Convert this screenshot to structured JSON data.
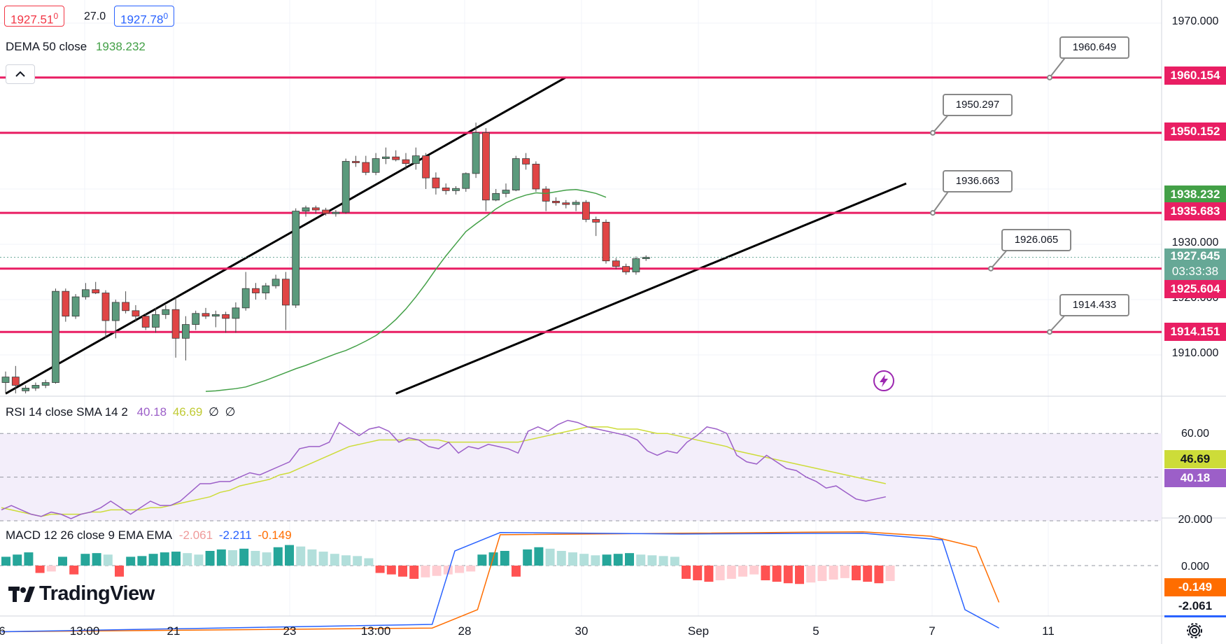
{
  "toolbar": {
    "bid": "1927.51",
    "bid_sup": "0",
    "spread": "27.0",
    "ask": "1927.78",
    "ask_sup": "0",
    "collapse_icon": "chevron-up-icon"
  },
  "legends": {
    "dema": {
      "name": "DEMA 50 close",
      "value": "1938.232"
    },
    "rsi": {
      "name": "RSI 14 close SMA 14 2",
      "value1": "40.18",
      "value2": "46.69",
      "extra1": "∅",
      "extra2": "∅"
    },
    "macd": {
      "name": "MACD 12 26 close 9 EMA EMA",
      "value1": "-2.061",
      "value2": "-2.211",
      "value3": "-0.149"
    }
  },
  "logo": {
    "text": "TradingView",
    "icon": "tradingview-logo-icon"
  },
  "flash_icon": "lightning-icon",
  "settings_icon": "gear-icon",
  "colors": {
    "up": "#26a69a",
    "down": "#ef5350",
    "level_line": "#e91e63",
    "dema": "#43a047",
    "rsi": "#9c5fc8",
    "rsi_sma": "#cddc39",
    "macd": "#2962ff",
    "signal": "#ff6d00"
  },
  "price_axis": {
    "ticks": [
      "1970.000",
      "1930.000",
      "1920.000",
      "1910.000"
    ],
    "labels": [
      {
        "value": "1960.154",
        "color": "#e91e63"
      },
      {
        "value": "1950.152",
        "color": "#e91e63"
      },
      {
        "value": "1938.232",
        "color": "#43a047"
      },
      {
        "value": "1935.683",
        "color": "#e91e63"
      },
      {
        "value": "1927.645",
        "sub": "03:33:38",
        "color": "#66a896"
      },
      {
        "value": "1925.604",
        "color": "#e91e63"
      },
      {
        "value": "1914.151",
        "color": "#e91e63"
      }
    ]
  },
  "rsi_axis": {
    "ticks": [
      "60.00"
    ],
    "labels": [
      {
        "value": "46.69",
        "color": "#cddc39"
      },
      {
        "value": "40.18",
        "color": "#9c5fc8"
      }
    ]
  },
  "macd_axis": {
    "ticks": [
      "20.000",
      "0.000"
    ],
    "labels": [
      {
        "value": "-0.149",
        "color": "#ff6d00"
      },
      {
        "value": "-2.061",
        "color": "#ffffff"
      }
    ]
  },
  "time_axis": [
    "6",
    "13:00",
    "21",
    "23",
    "13:00",
    "28",
    "30",
    "Sep",
    "5",
    "7",
    "11"
  ],
  "callouts": [
    "1960.649",
    "1950.297",
    "1936.663",
    "1926.065",
    "1914.433"
  ],
  "chart_data": {
    "type": "candlestick",
    "symbol_levels": [
      1960.154,
      1950.152,
      1935.683,
      1925.604,
      1914.151
    ],
    "last_price": 1927.645,
    "countdown": "03:33:38",
    "dema_last": 1938.232,
    "ylim": [
      1903,
      1972
    ],
    "candles": [
      {
        "o": 1905,
        "h": 1907,
        "l": 1902.5,
        "c": 1906
      },
      {
        "o": 1906,
        "h": 1908,
        "l": 1903,
        "c": 1904.5
      },
      {
        "o": 1903.5,
        "h": 1904.5,
        "l": 1903,
        "c": 1904
      },
      {
        "o": 1904,
        "h": 1905,
        "l": 1903.5,
        "c": 1904.5
      },
      {
        "o": 1904.5,
        "h": 1905.5,
        "l": 1904,
        "c": 1905
      },
      {
        "o": 1905,
        "h": 1922,
        "l": 1904.8,
        "c": 1921.5
      },
      {
        "o": 1921.5,
        "h": 1922,
        "l": 1916,
        "c": 1917
      },
      {
        "o": 1917,
        "h": 1921,
        "l": 1916.5,
        "c": 1920.5
      },
      {
        "o": 1920.5,
        "h": 1923,
        "l": 1920,
        "c": 1921.8
      },
      {
        "o": 1921.8,
        "h": 1923.2,
        "l": 1921,
        "c": 1921.2
      },
      {
        "o": 1921.2,
        "h": 1921.7,
        "l": 1913,
        "c": 1916.2
      },
      {
        "o": 1916.2,
        "h": 1920,
        "l": 1913,
        "c": 1919.5
      },
      {
        "o": 1919.5,
        "h": 1921.5,
        "l": 1917.5,
        "c": 1918
      },
      {
        "o": 1918,
        "h": 1919,
        "l": 1916,
        "c": 1917
      },
      {
        "o": 1917,
        "h": 1917.5,
        "l": 1914.5,
        "c": 1915
      },
      {
        "o": 1915,
        "h": 1918.5,
        "l": 1914,
        "c": 1917.3
      },
      {
        "o": 1917.3,
        "h": 1919,
        "l": 1916.5,
        "c": 1918.2
      },
      {
        "o": 1918.2,
        "h": 1920.5,
        "l": 1909.5,
        "c": 1913
      },
      {
        "o": 1913,
        "h": 1917,
        "l": 1909,
        "c": 1915.5
      },
      {
        "o": 1915.5,
        "h": 1918,
        "l": 1914.5,
        "c": 1917.5
      },
      {
        "o": 1917.5,
        "h": 1918.5,
        "l": 1916.5,
        "c": 1917
      },
      {
        "o": 1917,
        "h": 1918,
        "l": 1915,
        "c": 1917.3
      },
      {
        "o": 1917.3,
        "h": 1917.8,
        "l": 1914,
        "c": 1916.6
      },
      {
        "o": 1916.6,
        "h": 1919.5,
        "l": 1914,
        "c": 1918.5
      },
      {
        "o": 1918.5,
        "h": 1925,
        "l": 1918,
        "c": 1922
      },
      {
        "o": 1922,
        "h": 1923,
        "l": 1920,
        "c": 1921.2
      },
      {
        "o": 1921.2,
        "h": 1923,
        "l": 1920,
        "c": 1922.5
      },
      {
        "o": 1922.5,
        "h": 1924.5,
        "l": 1922,
        "c": 1923.7
      },
      {
        "o": 1923.7,
        "h": 1925,
        "l": 1914.5,
        "c": 1919
      },
      {
        "o": 1919,
        "h": 1936.5,
        "l": 1918.5,
        "c": 1936
      },
      {
        "o": 1936,
        "h": 1937,
        "l": 1935,
        "c": 1936.6
      },
      {
        "o": 1936.6,
        "h": 1937,
        "l": 1935.5,
        "c": 1936.2
      },
      {
        "o": 1936.2,
        "h": 1936.6,
        "l": 1935.2,
        "c": 1935.6
      },
      {
        "o": 1935.6,
        "h": 1936.2,
        "l": 1935,
        "c": 1935.8
      },
      {
        "o": 1935.8,
        "h": 1945.5,
        "l": 1935.5,
        "c": 1945
      },
      {
        "o": 1945,
        "h": 1946,
        "l": 1944,
        "c": 1944.8
      },
      {
        "o": 1944.8,
        "h": 1946,
        "l": 1942.5,
        "c": 1943
      },
      {
        "o": 1943,
        "h": 1946.5,
        "l": 1942.5,
        "c": 1945.5
      },
      {
        "o": 1945.5,
        "h": 1947.5,
        "l": 1944.5,
        "c": 1945.8
      },
      {
        "o": 1945.8,
        "h": 1947,
        "l": 1945,
        "c": 1945.3
      },
      {
        "o": 1945.3,
        "h": 1946.5,
        "l": 1943.5,
        "c": 1944.6
      },
      {
        "o": 1944.6,
        "h": 1947.5,
        "l": 1943.5,
        "c": 1946
      },
      {
        "o": 1946,
        "h": 1946.5,
        "l": 1940,
        "c": 1942
      },
      {
        "o": 1942,
        "h": 1943,
        "l": 1939,
        "c": 1940.2
      },
      {
        "o": 1940.2,
        "h": 1941,
        "l": 1939,
        "c": 1939.7
      },
      {
        "o": 1939.7,
        "h": 1940.5,
        "l": 1939,
        "c": 1940.1
      },
      {
        "o": 1940.1,
        "h": 1943,
        "l": 1939.5,
        "c": 1942.8
      },
      {
        "o": 1942.8,
        "h": 1952,
        "l": 1942,
        "c": 1950.2
      },
      {
        "o": 1950.2,
        "h": 1951,
        "l": 1936,
        "c": 1938
      },
      {
        "o": 1938,
        "h": 1940,
        "l": 1937.8,
        "c": 1939.2
      },
      {
        "o": 1939.2,
        "h": 1941,
        "l": 1938.5,
        "c": 1939.8
      },
      {
        "o": 1939.8,
        "h": 1946,
        "l": 1939.6,
        "c": 1945.5
      },
      {
        "o": 1945.5,
        "h": 1946.5,
        "l": 1943.5,
        "c": 1944.5
      },
      {
        "o": 1944.5,
        "h": 1945,
        "l": 1939.5,
        "c": 1940
      },
      {
        "o": 1940,
        "h": 1940.5,
        "l": 1936,
        "c": 1937.8
      },
      {
        "o": 1937.8,
        "h": 1938.5,
        "l": 1937,
        "c": 1937.5
      },
      {
        "o": 1937.5,
        "h": 1938,
        "l": 1936.5,
        "c": 1937.2
      },
      {
        "o": 1937.2,
        "h": 1938,
        "l": 1936,
        "c": 1937.6
      },
      {
        "o": 1937.6,
        "h": 1938,
        "l": 1934,
        "c": 1934.5
      },
      {
        "o": 1934.5,
        "h": 1935,
        "l": 1931.5,
        "c": 1934
      },
      {
        "o": 1934,
        "h": 1934.5,
        "l": 1926.5,
        "c": 1927
      },
      {
        "o": 1927,
        "h": 1927.5,
        "l": 1925.5,
        "c": 1926
      },
      {
        "o": 1926,
        "h": 1926.5,
        "l": 1924.5,
        "c": 1925
      },
      {
        "o": 1925,
        "h": 1927.8,
        "l": 1924.5,
        "c": 1927.4
      },
      {
        "o": 1927.4,
        "h": 1928,
        "l": 1927,
        "c": 1927.645
      }
    ],
    "dema": [
      1903.4,
      1903.5,
      1903.7,
      1903.9,
      1904.2,
      1904.8,
      1905.4,
      1906.1,
      1906.8,
      1907.5,
      1908.1,
      1908.8,
      1909.5,
      1910.2,
      1910.8,
      1911.6,
      1912.5,
      1913.5,
      1914.8,
      1916.4,
      1918.3,
      1920.5,
      1922.9,
      1925.5,
      1927.9,
      1930.1,
      1932.3,
      1933.7,
      1935,
      1936.4,
      1937.5,
      1938.3,
      1938.9,
      1939.3,
      1939.2,
      1939.5,
      1939.8,
      1939.9,
      1939.6,
      1939.2,
      1938.5
    ],
    "dema_start_index": 20,
    "channel_upper": [
      [
        0,
        1903
      ],
      [
        56,
        1960.2
      ]
    ],
    "channel_lower": [
      [
        39,
        1903
      ],
      [
        90,
        1941
      ]
    ],
    "rsi": {
      "values": [
        35,
        37,
        35,
        33,
        32,
        34,
        33,
        31,
        33,
        34,
        36,
        39,
        36,
        33,
        36,
        39,
        37,
        37,
        39,
        43,
        47,
        47,
        48,
        48,
        50,
        52,
        51,
        53,
        55,
        57,
        63,
        64,
        64,
        66,
        75,
        72,
        69,
        72,
        73,
        71,
        66,
        68,
        67,
        64,
        63,
        66,
        61,
        64,
        63,
        65,
        64,
        63,
        61,
        71,
        73,
        71,
        74,
        76,
        75,
        73,
        72,
        71,
        70,
        69,
        67,
        62,
        60,
        62,
        61,
        66,
        69,
        73,
        72,
        70,
        60,
        57,
        56,
        60,
        57,
        54,
        53,
        50,
        48,
        45,
        46,
        43,
        40,
        39,
        40,
        41
      ],
      "sma": [
        36,
        35,
        34,
        33,
        32,
        33,
        33,
        33,
        33,
        34,
        34,
        35,
        35,
        35,
        35,
        36,
        36,
        37,
        38,
        39,
        40,
        41,
        43,
        44,
        46,
        47,
        48,
        49,
        51,
        52,
        54,
        56,
        58,
        60,
        62,
        64,
        65,
        66,
        67,
        67,
        67,
        67,
        67,
        67,
        67,
        66,
        66,
        66,
        66,
        66,
        66,
        66,
        66,
        67,
        68,
        69,
        70,
        71,
        72,
        73,
        73,
        73,
        72,
        72,
        72,
        71,
        70,
        70,
        69,
        68,
        67,
        66,
        65,
        64,
        62,
        61,
        60,
        59,
        58,
        57,
        56,
        55,
        54,
        53,
        52,
        51,
        50,
        49,
        48,
        47
      ],
      "ylim": [
        25,
        80
      ]
    },
    "macd": {
      "histogram": [
        1.2,
        1.5,
        1.8,
        -1.0,
        -0.8,
        1.2,
        -1.2,
        1.6,
        1.7,
        1.5,
        -1.5,
        1.2,
        1.3,
        1.6,
        1.8,
        1.9,
        1.7,
        1.5,
        2.0,
        2.2,
        2.1,
        2.3,
        2.0,
        1.8,
        2.5,
        2.8,
        2.6,
        2.2,
        1.9,
        1.6,
        1.4,
        1.3,
        1.0,
        -1.0,
        -1.2,
        -1.5,
        -1.8,
        -1.6,
        -1.4,
        -1.2,
        -1.0,
        -0.8,
        1.5,
        1.8,
        2.0,
        -1.5,
        2.2,
        2.5,
        2.3,
        2.0,
        1.8,
        1.6,
        1.4,
        1.5,
        1.6,
        1.7,
        1.5,
        1.4,
        1.3,
        1.2,
        -1.8,
        -2.0,
        -2.2,
        -2.0,
        -1.8,
        -1.5,
        -1.2,
        -2.0,
        -2.2,
        -2.4,
        -2.5,
        -2.3,
        -2.1,
        -1.9,
        -1.7,
        -2.0,
        -2.2,
        -2.4,
        -2.1
      ],
      "macd_line": [
        [
          0,
          -9
        ],
        [
          38,
          -8
        ],
        [
          40,
          2
        ],
        [
          44,
          4.5
        ],
        [
          60,
          4.3
        ],
        [
          76,
          4.4
        ],
        [
          83,
          3.5
        ],
        [
          85,
          -6
        ],
        [
          88,
          -8.5
        ]
      ],
      "signal_line": [
        [
          0,
          -9
        ],
        [
          38,
          -8.5
        ],
        [
          42,
          -6
        ],
        [
          44,
          4.2
        ],
        [
          60,
          4.4
        ],
        [
          76,
          4.6
        ],
        [
          82,
          4.0
        ],
        [
          86,
          2.5
        ],
        [
          88,
          -5
        ]
      ],
      "ylim": [
        -9.5,
        6
      ]
    }
  }
}
